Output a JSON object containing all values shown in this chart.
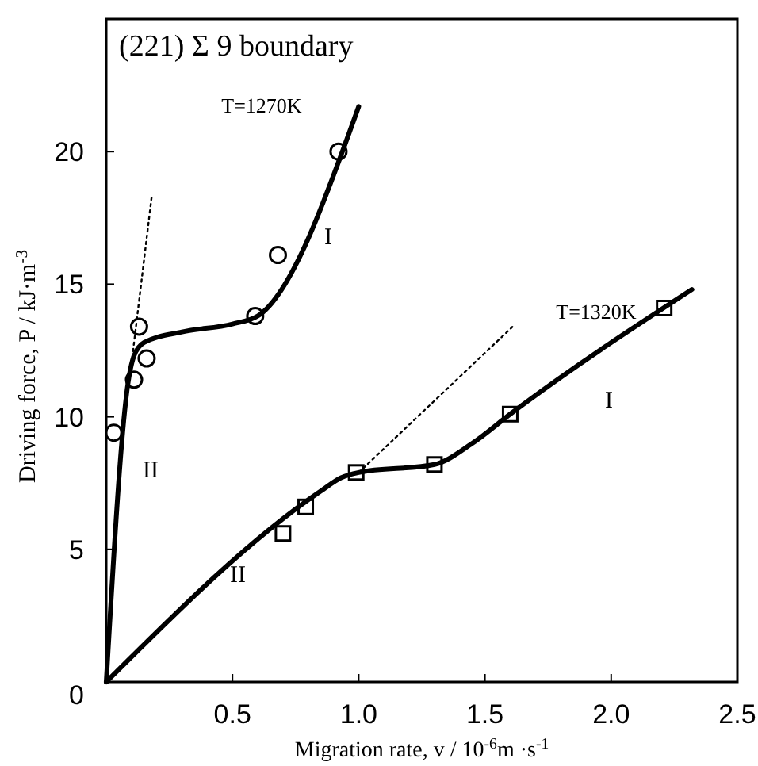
{
  "chart_data": {
    "type": "line",
    "title": "(221) Σ 9 boundary",
    "xlabel": "Migration rate, v  / 10$^{-6}$m ·s$^{-1}$",
    "ylabel": "Driving force, P / kJ·m$^{-3}$",
    "xlim": [
      0,
      2.5
    ],
    "ylim": [
      0,
      25
    ],
    "xticks": [
      0.5,
      {
        "value": 1,
        "label": "1.0"
      },
      1.5,
      {
        "value": 2,
        "label": "2.0"
      },
      2.5
    ],
    "yticks": [
      0,
      5,
      10,
      15,
      20
    ],
    "grid": false,
    "series": [
      {
        "color": "#000000",
        "line_style": "solid",
        "x": [
          0,
          0.09,
          0.11,
          0.15,
          0.3,
          0.5,
          0.6,
          1.0
        ],
        "values": [
          0,
          11.5,
          12.3,
          12.8,
          13.2,
          13.5,
          13.8,
          21.7
        ]
      },
      {
        "color": "#000000",
        "line_style": "dotted",
        "x": [
          0.1,
          0.18
        ],
        "values": [
          12,
          18.3
        ]
      },
      {
        "type": "scatter",
        "color": "#000000",
        "marker": "circle",
        "x": [
          0.03,
          0.11,
          0.13,
          0.16,
          0.59,
          0.68,
          0.92
        ],
        "values": [
          9.4,
          11.4,
          13.4,
          12.2,
          13.8,
          16.1,
          20.0
        ]
      },
      {
        "color": "#000000",
        "line_style": "solid",
        "x": [
          0,
          0.85,
          0.93,
          1.0,
          1.3,
          1.45,
          1.6,
          2.32
        ],
        "values": [
          0,
          7.2,
          7.7,
          7.9,
          8.2,
          9.0,
          10.1,
          14.8
        ]
      },
      {
        "color": "#000000",
        "line_style": "dotted",
        "x": [
          1.0,
          1.61
        ],
        "values": [
          7.9,
          13.4
        ]
      },
      {
        "type": "scatter",
        "color": "#000000",
        "marker": "square",
        "x": [
          0.7,
          0.79,
          0.99,
          1.3,
          1.6,
          2.21
        ],
        "values": [
          5.6,
          6.6,
          7.9,
          8.2,
          10.1,
          14.1
        ]
      }
    ],
    "annotations": [
      "T=1270K",
      "I",
      "II",
      "T=1320K",
      "I",
      "II"
    ]
  }
}
